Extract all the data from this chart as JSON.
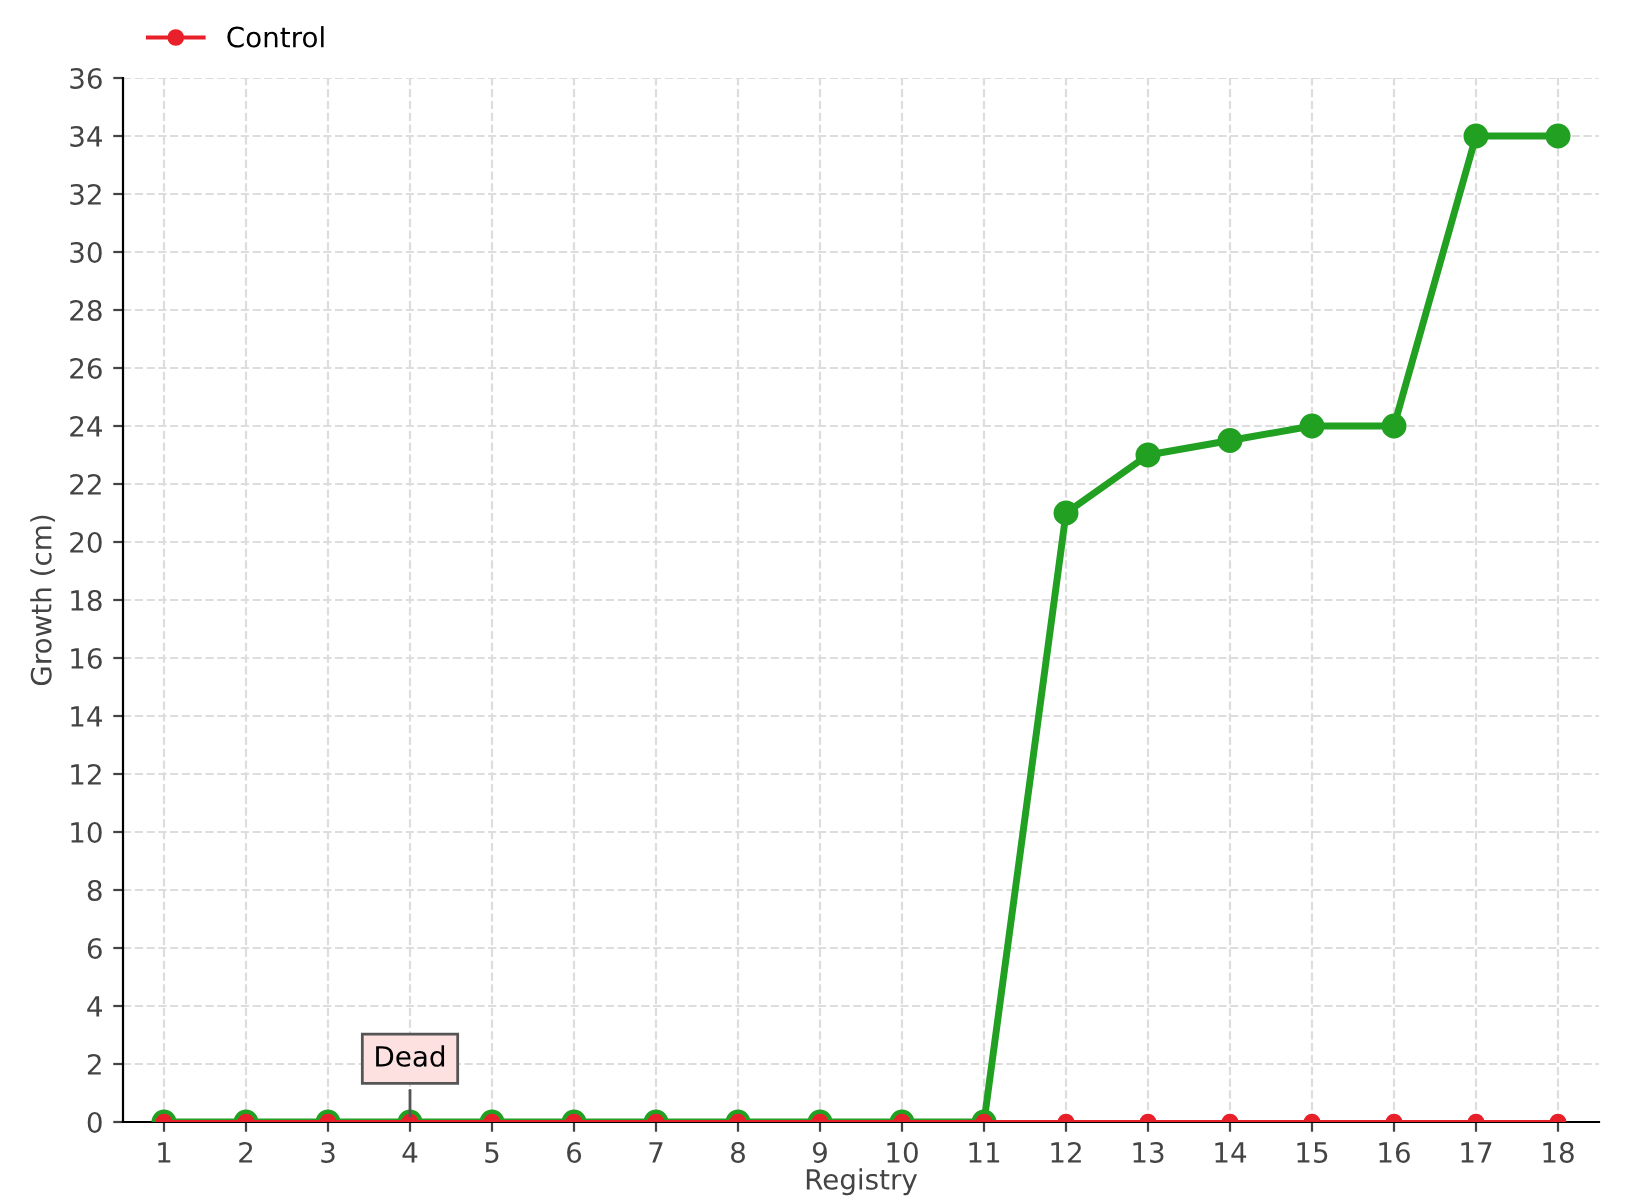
{
  "chart_data": {
    "type": "line",
    "xlabel": "Registry",
    "ylabel": "Growth (cm)",
    "categories": [
      "1",
      "2",
      "3",
      "4",
      "5",
      "6",
      "7",
      "8",
      "9",
      "10",
      "11",
      "12",
      "13",
      "14",
      "15",
      "16",
      "17",
      "18"
    ],
    "series": [
      {
        "color": "#22a022",
        "values": [
          0,
          0,
          0,
          0,
          0,
          0,
          0,
          0,
          0,
          0,
          0,
          21,
          23,
          23.5,
          24,
          24,
          34,
          34
        ]
      },
      {
        "name": "Control",
        "color": "#e8202a",
        "values": [
          0,
          0,
          0,
          0,
          0,
          0,
          0,
          0,
          0,
          0,
          0,
          0,
          0,
          0,
          0,
          0,
          0,
          0
        ]
      }
    ],
    "ylim": [
      0,
      36
    ],
    "yticks": [
      0,
      2,
      4,
      6,
      8,
      10,
      12,
      14,
      16,
      18,
      20,
      22,
      24,
      26,
      28,
      30,
      32,
      34,
      36
    ],
    "grid": true,
    "legend": "top left",
    "marker": "circle",
    "line_style": "solid",
    "annotations": [
      {
        "text": "Dead",
        "x": "4",
        "y": 0
      }
    ]
  }
}
